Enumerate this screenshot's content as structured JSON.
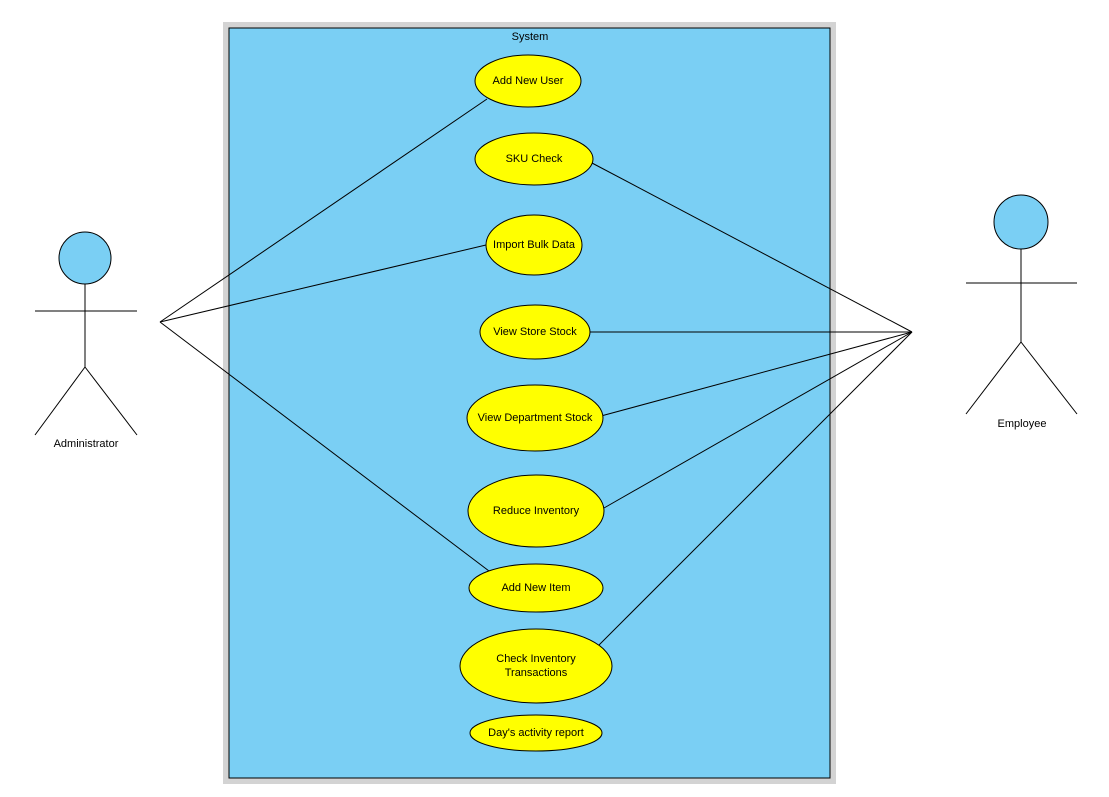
{
  "colors": {
    "boundary_outer": "#d3d3d3",
    "boundary_fill": "#7acff4",
    "actor_head": "#7acff4",
    "usecase_fill": "#ffff00",
    "line": "#000000"
  },
  "system": {
    "title": "System"
  },
  "actors": {
    "administrator": {
      "label": "Administrator",
      "icon": "stick-figure-icon"
    },
    "employee": {
      "label": "Employee",
      "icon": "stick-figure-icon"
    }
  },
  "use_cases": [
    {
      "id": "add-new-user",
      "lines": [
        "Add New User"
      ]
    },
    {
      "id": "sku-check",
      "lines": [
        "SKU Check"
      ]
    },
    {
      "id": "import-bulk-data",
      "lines": [
        "Import Bulk Data"
      ]
    },
    {
      "id": "view-store-stock",
      "lines": [
        "View Store Stock"
      ]
    },
    {
      "id": "view-department-stock",
      "lines": [
        "View Department Stock"
      ]
    },
    {
      "id": "reduce-inventory",
      "lines": [
        "Reduce Inventory"
      ]
    },
    {
      "id": "add-new-item",
      "lines": [
        "Add New Item"
      ]
    },
    {
      "id": "check-inventory-transactions",
      "lines": [
        "Check Inventory",
        "Transactions"
      ]
    },
    {
      "id": "days-activity-report",
      "lines": [
        "Day's activity report"
      ]
    }
  ],
  "associations": [
    {
      "actor": "administrator",
      "use_case": "add-new-user"
    },
    {
      "actor": "administrator",
      "use_case": "import-bulk-data"
    },
    {
      "actor": "administrator",
      "use_case": "add-new-item"
    },
    {
      "actor": "employee",
      "use_case": "sku-check"
    },
    {
      "actor": "employee",
      "use_case": "view-store-stock"
    },
    {
      "actor": "employee",
      "use_case": "view-department-stock"
    },
    {
      "actor": "employee",
      "use_case": "reduce-inventory"
    },
    {
      "actor": "employee",
      "use_case": "check-inventory-transactions"
    }
  ]
}
